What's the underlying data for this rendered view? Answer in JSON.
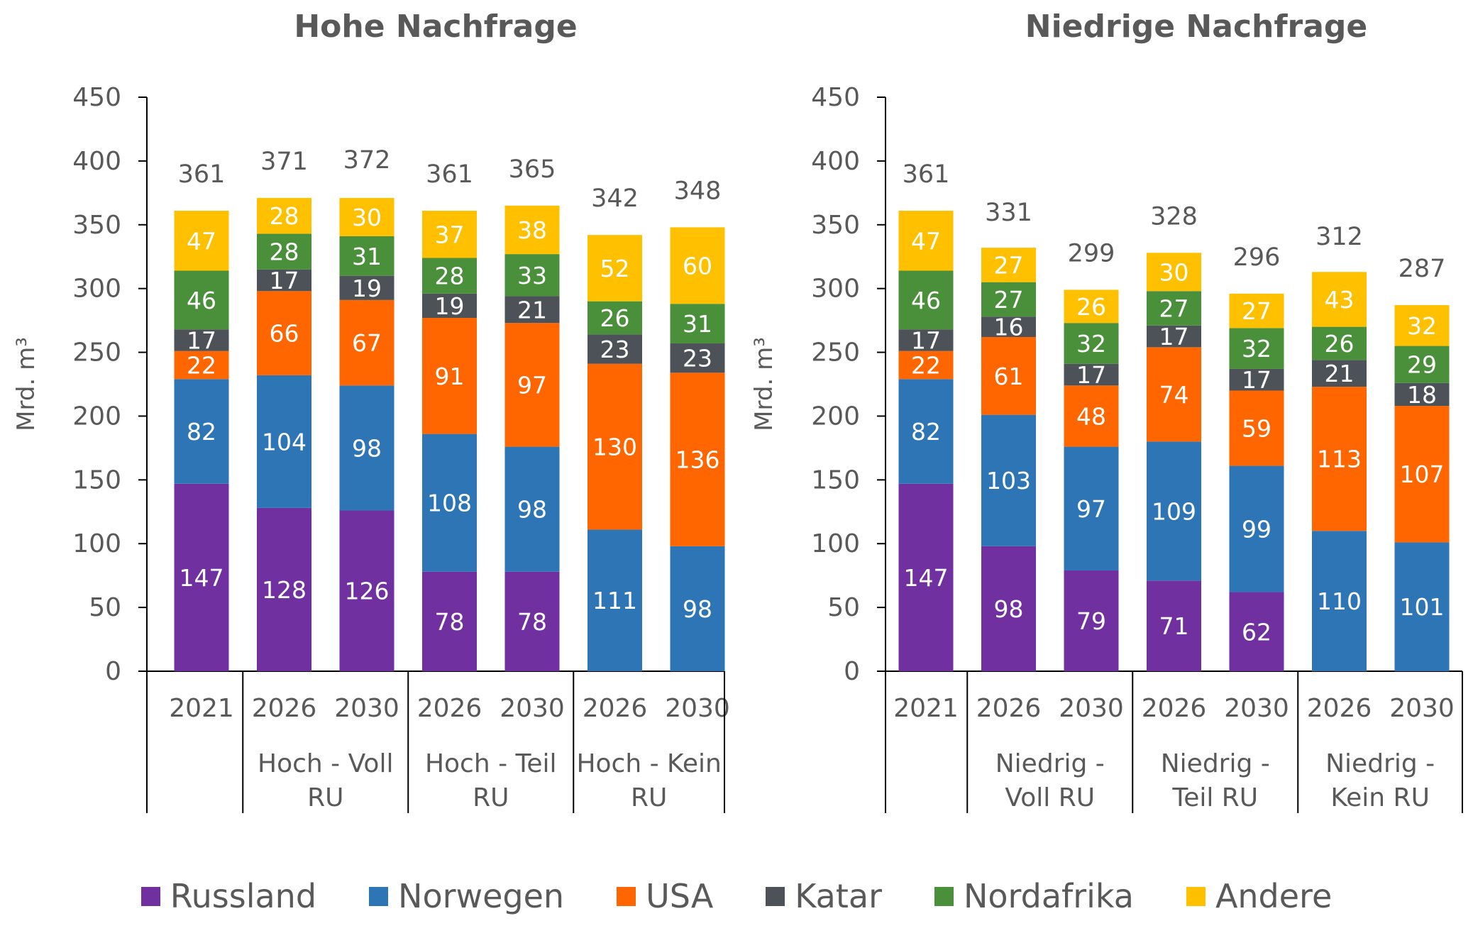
{
  "colors": {
    "Russland": "#7030a0",
    "Norwegen": "#2e75b6",
    "USA": "#ff6600",
    "Katar": "#4d5259",
    "Nordafrika": "#4a8f3a",
    "Andere": "#ffc000"
  },
  "legend": [
    {
      "name": "Russland",
      "color": "#7030a0"
    },
    {
      "name": "Norwegen",
      "color": "#2e75b6"
    },
    {
      "name": "USA",
      "color": "#ff6600"
    },
    {
      "name": "Katar",
      "color": "#4d5259"
    },
    {
      "name": "Nordafrika",
      "color": "#4a8f3a"
    },
    {
      "name": "Andere",
      "color": "#ffc000"
    }
  ],
  "chart_data": [
    {
      "type": "bar",
      "stacked": true,
      "title": "Hohe Nachfrage",
      "ylabel": "Mrd. m³",
      "ylim": [
        0,
        450
      ],
      "yticks": [
        0,
        50,
        100,
        150,
        200,
        250,
        300,
        350,
        400,
        450
      ],
      "categories": [
        "2021",
        "2026",
        "2030",
        "2026",
        "2030",
        "2026",
        "2030"
      ],
      "groups": [
        {
          "label": "",
          "categories": [
            0
          ]
        },
        {
          "label": "Hoch - Voll RU",
          "categories": [
            1,
            2
          ]
        },
        {
          "label": "Hoch - Teil RU",
          "categories": [
            3,
            4
          ]
        },
        {
          "label": "Hoch - Kein RU",
          "categories": [
            5,
            6
          ]
        }
      ],
      "series": [
        {
          "name": "Russland",
          "values": [
            147,
            128,
            126,
            78,
            78,
            0,
            0
          ]
        },
        {
          "name": "Norwegen",
          "values": [
            82,
            104,
            98,
            108,
            98,
            111,
            98
          ]
        },
        {
          "name": "USA",
          "values": [
            22,
            66,
            67,
            91,
            97,
            130,
            136
          ]
        },
        {
          "name": "Katar",
          "values": [
            17,
            17,
            19,
            19,
            21,
            23,
            23
          ]
        },
        {
          "name": "Nordafrika",
          "values": [
            46,
            28,
            31,
            28,
            33,
            26,
            31
          ]
        },
        {
          "name": "Andere",
          "values": [
            47,
            28,
            30,
            37,
            38,
            52,
            60
          ]
        }
      ],
      "totals": [
        361,
        371,
        372,
        361,
        365,
        342,
        348
      ]
    },
    {
      "type": "bar",
      "stacked": true,
      "title": "Niedrige Nachfrage",
      "ylabel": "Mrd. m³",
      "ylim": [
        0,
        450
      ],
      "yticks": [
        0,
        50,
        100,
        150,
        200,
        250,
        300,
        350,
        400,
        450
      ],
      "categories": [
        "2021",
        "2026",
        "2030",
        "2026",
        "2030",
        "2026",
        "2030"
      ],
      "groups": [
        {
          "label": "",
          "categories": [
            0
          ]
        },
        {
          "label": "Niedrig - Voll RU",
          "categories": [
            1,
            2
          ]
        },
        {
          "label": "Niedrig - Teil RU",
          "categories": [
            3,
            4
          ]
        },
        {
          "label": "Niedrig - Kein RU",
          "categories": [
            5,
            6
          ]
        }
      ],
      "series": [
        {
          "name": "Russland",
          "values": [
            147,
            98,
            79,
            71,
            62,
            0,
            0
          ]
        },
        {
          "name": "Norwegen",
          "values": [
            82,
            103,
            97,
            109,
            99,
            110,
            101
          ]
        },
        {
          "name": "USA",
          "values": [
            22,
            61,
            48,
            74,
            59,
            113,
            107
          ]
        },
        {
          "name": "Katar",
          "values": [
            17,
            16,
            17,
            17,
            17,
            21,
            18
          ]
        },
        {
          "name": "Nordafrika",
          "values": [
            46,
            27,
            32,
            27,
            32,
            26,
            29
          ]
        },
        {
          "name": "Andere",
          "values": [
            47,
            27,
            26,
            30,
            27,
            43,
            32
          ]
        }
      ],
      "totals": [
        361,
        331,
        299,
        328,
        296,
        312,
        287
      ]
    }
  ]
}
